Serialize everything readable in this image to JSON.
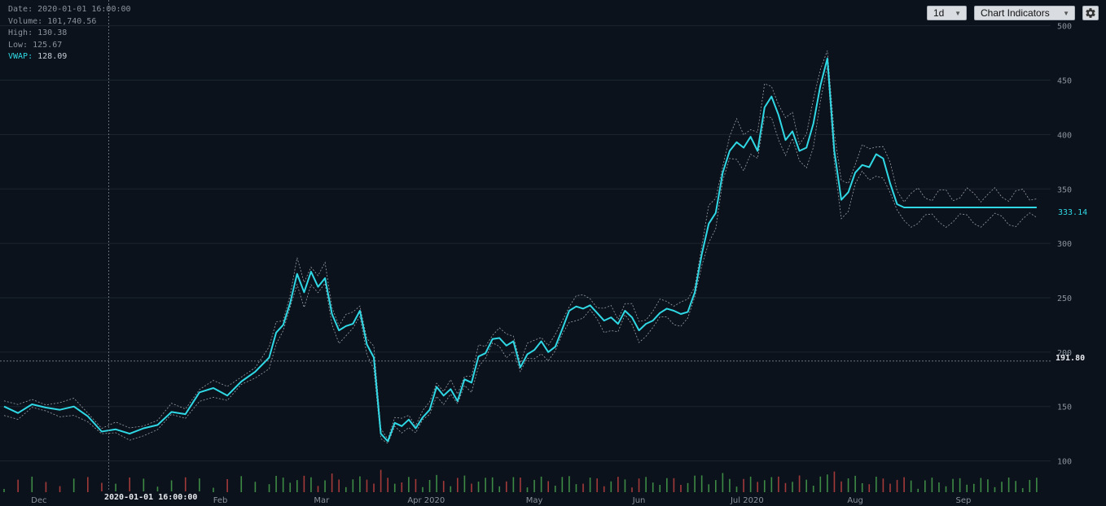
{
  "info": {
    "date_label": "Date:",
    "date_value": "2020-01-01 16:00:00",
    "volume_label": "Volume:",
    "volume_value": "101,740.56",
    "high_label": "High:",
    "high_value": "130.38",
    "low_label": "Low:",
    "low_value": "125.67",
    "vwap_label": "VWAP:",
    "vwap_value": "128.09"
  },
  "controls": {
    "interval": "1d",
    "indicators": "Chart Indicators"
  },
  "crosshair": {
    "date_label": "2020-01-01 16:00:00",
    "price_label": "191.80",
    "price_value": 191.8,
    "day_index": 30
  },
  "last_price_label": "333.14",
  "colors": {
    "background": "#0c121b",
    "vwap_line": "#2fd8e4",
    "band_line": "#c8ced6",
    "grid": "#1b2530",
    "volume_up": "#3d8a45",
    "volume_down": "#a33a3a",
    "axis_text": "#8a929c"
  },
  "icons": {
    "gear": "gear-icon",
    "dropdown": "triangle-down-icon"
  },
  "chart_data": {
    "type": "line",
    "ylim": [
      75,
      505
    ],
    "y_ticks": [
      100,
      150,
      200,
      250,
      300,
      350,
      400,
      450,
      500
    ],
    "x_ticks": [
      "Dec",
      "Feb",
      "Mar",
      "Apr 2020",
      "May",
      "Jun",
      "Jul 2020",
      "Aug",
      "Sep"
    ],
    "x_tick_days": [
      10,
      62,
      91,
      121,
      152,
      182,
      213,
      244,
      275
    ],
    "x_range_days": [
      0,
      300
    ],
    "series": [
      {
        "name": "VWAP",
        "x": [
          0,
          4,
          8,
          12,
          16,
          20,
          24,
          28,
          32,
          36,
          40,
          44,
          48,
          52,
          56,
          60,
          64,
          68,
          72,
          76,
          78,
          80,
          82,
          84,
          86,
          88,
          90,
          92,
          94,
          96,
          98,
          100,
          102,
          104,
          106,
          108,
          110,
          112,
          114,
          116,
          118,
          120,
          122,
          124,
          126,
          128,
          130,
          132,
          134,
          136,
          138,
          140,
          142,
          144,
          146,
          148,
          150,
          152,
          154,
          156,
          158,
          160,
          162,
          164,
          166,
          168,
          170,
          172,
          174,
          176,
          178,
          180,
          182,
          184,
          186,
          188,
          190,
          192,
          194,
          196,
          198,
          200,
          202,
          204,
          206,
          208,
          210,
          212,
          214,
          216,
          218,
          220,
          222,
          224,
          226,
          228,
          230,
          232,
          234,
          236,
          238,
          240,
          242,
          244,
          246,
          248,
          250,
          252,
          254,
          256,
          258,
          260,
          262,
          264,
          266,
          268,
          270,
          272,
          274,
          276,
          278,
          280,
          282,
          284,
          286,
          288,
          290,
          292,
          294,
          296
        ],
        "y": [
          150,
          144,
          152,
          149,
          147,
          150,
          141,
          127,
          129,
          125,
          130,
          133,
          145,
          143,
          163,
          167,
          160,
          173,
          182,
          195,
          218,
          225,
          245,
          272,
          255,
          274,
          260,
          268,
          235,
          220,
          224,
          226,
          238,
          207,
          195,
          125,
          118,
          135,
          132,
          138,
          130,
          140,
          147,
          168,
          160,
          166,
          155,
          175,
          172,
          196,
          199,
          212,
          213,
          206,
          210,
          186,
          198,
          202,
          210,
          200,
          205,
          221,
          238,
          242,
          240,
          243,
          236,
          229,
          232,
          226,
          238,
          232,
          220,
          226,
          229,
          236,
          240,
          238,
          235,
          237,
          255,
          290,
          318,
          328,
          365,
          385,
          393,
          388,
          398,
          385,
          425,
          435,
          418,
          395,
          403,
          385,
          388,
          410,
          445,
          470,
          385,
          340,
          347,
          365,
          372,
          370,
          382,
          378,
          355,
          336,
          333,
          333,
          333,
          333,
          333,
          333,
          333,
          333,
          333,
          333,
          333,
          333,
          333,
          333,
          333,
          333,
          333,
          333,
          333,
          333
        ]
      }
    ]
  }
}
